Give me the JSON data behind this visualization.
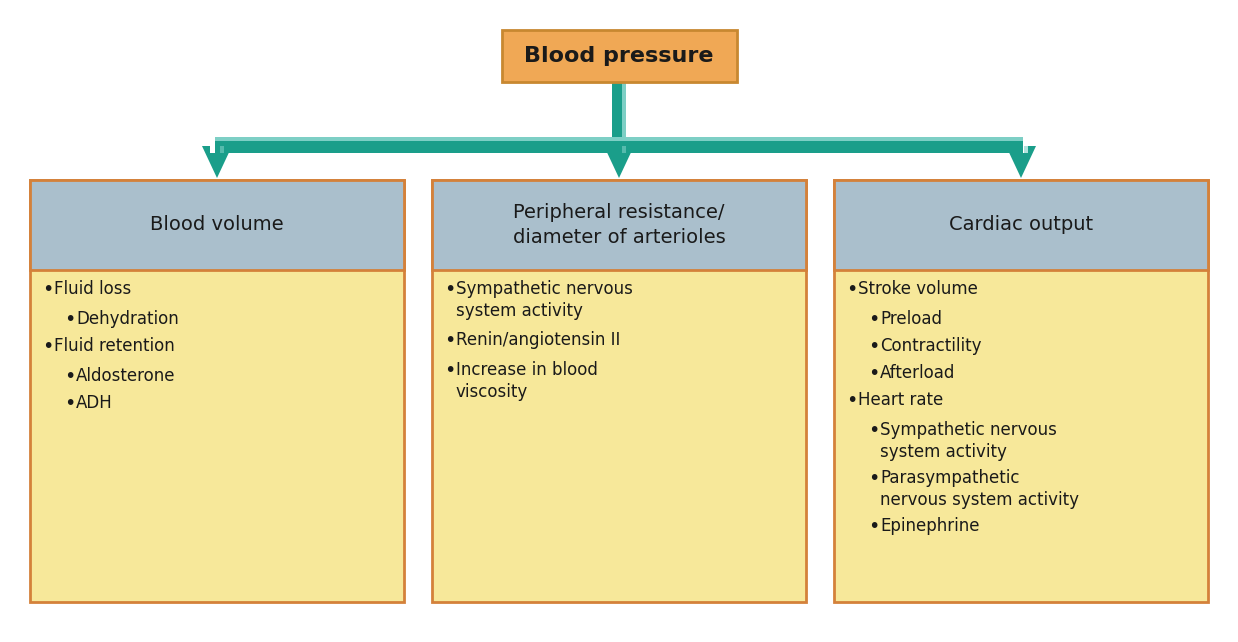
{
  "title": "Blood pressure",
  "title_box_color": "#F0A855",
  "title_box_edge_color": "#C88830",
  "title_text_color": "#1A1A1A",
  "arrow_color": "#1A9E8A",
  "arrow_light_color": "#7DCFC5",
  "header_bg_color": "#AABFCC",
  "body_bg_color": "#F7E89A",
  "box_edge_color": "#D4813A",
  "columns": [
    {
      "header": "Blood volume",
      "items": [
        {
          "text": "Fluid loss",
          "level": 1
        },
        {
          "text": "Dehydration",
          "level": 2
        },
        {
          "text": "Fluid retention",
          "level": 1
        },
        {
          "text": "Aldosterone",
          "level": 2
        },
        {
          "text": "ADH",
          "level": 2
        }
      ]
    },
    {
      "header": "Peripheral resistance/\ndiameter of arterioles",
      "items": [
        {
          "text": "Sympathetic nervous\nsystem activity",
          "level": 1
        },
        {
          "text": "Renin/angiotensin II",
          "level": 1
        },
        {
          "text": "Increase in blood\nviscosity",
          "level": 1
        }
      ]
    },
    {
      "header": "Cardiac output",
      "items": [
        {
          "text": "Stroke volume",
          "level": 1
        },
        {
          "text": "Preload",
          "level": 2
        },
        {
          "text": "Contractility",
          "level": 2
        },
        {
          "text": "Afterload",
          "level": 2
        },
        {
          "text": "Heart rate",
          "level": 1
        },
        {
          "text": "Sympathetic nervous\nsystem activity",
          "level": 2
        },
        {
          "text": "Parasympathetic\nnervous system activity",
          "level": 2
        },
        {
          "text": "Epinephrine",
          "level": 2
        }
      ]
    }
  ],
  "background_color": "#FFFFFF",
  "font_size_title": 16,
  "font_size_header": 14,
  "font_size_body": 12
}
